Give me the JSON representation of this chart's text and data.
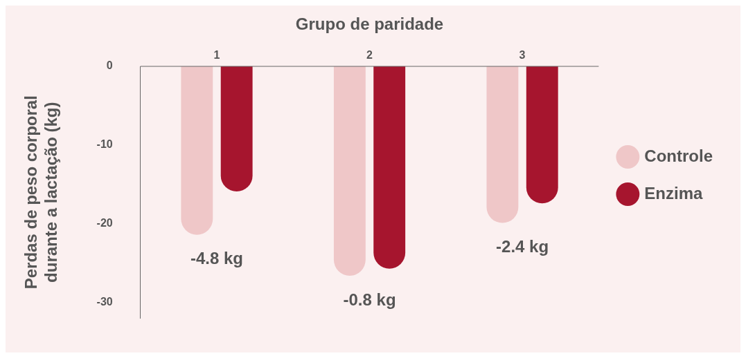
{
  "chart_data": {
    "type": "bar",
    "xlabel": "Grupo de paridade",
    "ylabel": "Perdas de peso corporal durante a lactação (kg)",
    "categories": [
      "1",
      "2",
      "3"
    ],
    "series": [
      {
        "name": "Controle",
        "color": "#efc7c8",
        "values": [
          -21.4,
          -26.6,
          -19.9
        ]
      },
      {
        "name": "Enzima",
        "color": "#a6152e",
        "values": [
          -15.9,
          -25.7,
          -17.4
        ]
      }
    ],
    "ylim": [
      -32,
      0
    ],
    "yticks": [
      0,
      -10,
      -20,
      -30
    ],
    "grid": false,
    "legend": "right",
    "annotations": [
      "-4.8 kg",
      "-0.8 kg",
      "-2.4 kg"
    ]
  }
}
